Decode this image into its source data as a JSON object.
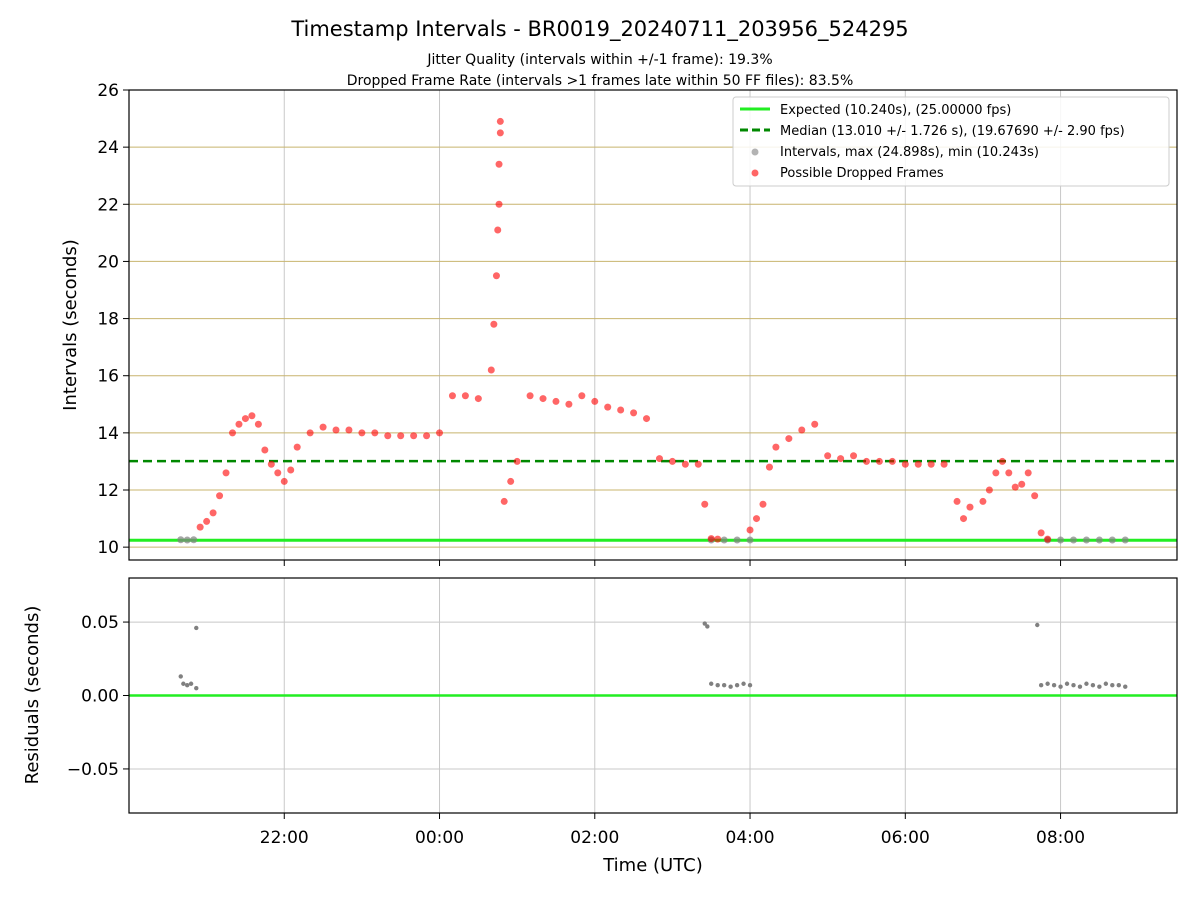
{
  "title": "Timestamp Intervals - BR0019_20240711_203956_524295",
  "subtitle_line1": "Jitter Quality (intervals within +/-1 frame): 19.3%",
  "subtitle_line2": "Dropped Frame Rate (intervals >1 frames late within 50 FF files): 83.5%",
  "colors": {
    "expected": "#22ee22",
    "median": "#008800",
    "intervals": "#808080",
    "dropped": "#ff0000",
    "hgrid_top": "#c8b46e",
    "grid": "#c8c8c8"
  },
  "chart_data": [
    {
      "type": "scatter",
      "panel": "intervals",
      "ylabel": "Intervals (seconds)",
      "ylim": [
        9.55,
        26
      ],
      "yticks": [
        "10",
        "12",
        "14",
        "16",
        "18",
        "20",
        "22",
        "24",
        "26"
      ],
      "xlim_hours": [
        20.0,
        33.5
      ],
      "grid": true,
      "legend_position": "top-right",
      "expected_value": 10.24,
      "median_value": 13.01,
      "legend": [
        {
          "label": "Expected (10.240s), (25.00000 fps)",
          "style": "solid-line"
        },
        {
          "label": "Median (13.010 +/- 1.726 s), (19.67690 +/- 2.90 fps)",
          "style": "dashed-line"
        },
        {
          "label": "Intervals, max (24.898s), min (10.243s)",
          "style": "gray-dot"
        },
        {
          "label": "Possible Dropped Frames",
          "style": "red-dot"
        }
      ],
      "interval_points": [
        [
          "20:40",
          10.26
        ],
        [
          "20:45",
          10.25
        ],
        [
          "20:50",
          10.26
        ],
        [
          "03:30",
          10.25
        ],
        [
          "03:40",
          10.25
        ],
        [
          "03:50",
          10.25
        ],
        [
          "04:00",
          10.25
        ],
        [
          "07:50",
          10.25
        ],
        [
          "08:00",
          10.25
        ],
        [
          "08:10",
          10.25
        ],
        [
          "08:20",
          10.25
        ],
        [
          "08:30",
          10.25
        ],
        [
          "08:40",
          10.25
        ],
        [
          "08:50",
          10.25
        ]
      ],
      "dropped_frames": [
        [
          "20:55",
          10.7
        ],
        [
          "21:00",
          10.9
        ],
        [
          "21:05",
          11.2
        ],
        [
          "21:10",
          11.8
        ],
        [
          "21:15",
          12.6
        ],
        [
          "21:20",
          14.0
        ],
        [
          "21:25",
          14.3
        ],
        [
          "21:30",
          14.5
        ],
        [
          "21:35",
          14.6
        ],
        [
          "21:40",
          14.3
        ],
        [
          "21:45",
          13.4
        ],
        [
          "21:50",
          12.9
        ],
        [
          "21:55",
          12.6
        ],
        [
          "22:00",
          12.3
        ],
        [
          "22:05",
          12.7
        ],
        [
          "22:10",
          13.5
        ],
        [
          "22:20",
          14.0
        ],
        [
          "22:30",
          14.2
        ],
        [
          "22:40",
          14.1
        ],
        [
          "22:50",
          14.1
        ],
        [
          "23:00",
          14.0
        ],
        [
          "23:10",
          14.0
        ],
        [
          "23:20",
          13.9
        ],
        [
          "23:30",
          13.9
        ],
        [
          "23:40",
          13.9
        ],
        [
          "23:50",
          13.9
        ],
        [
          "00:00",
          14.0
        ],
        [
          "00:10",
          15.3
        ],
        [
          "00:20",
          15.3
        ],
        [
          "00:30",
          15.2
        ],
        [
          "00:40",
          16.2
        ],
        [
          "00:42",
          17.8
        ],
        [
          "00:44",
          19.5
        ],
        [
          "00:45",
          21.1
        ],
        [
          "00:46",
          22.0
        ],
        [
          "00:46",
          23.4
        ],
        [
          "00:47",
          24.5
        ],
        [
          "00:47",
          24.9
        ],
        [
          "00:50",
          11.6
        ],
        [
          "00:55",
          12.3
        ],
        [
          "01:00",
          13.0
        ],
        [
          "01:10",
          15.3
        ],
        [
          "01:20",
          15.2
        ],
        [
          "01:30",
          15.1
        ],
        [
          "01:40",
          15.0
        ],
        [
          "01:50",
          15.3
        ],
        [
          "02:00",
          15.1
        ],
        [
          "02:10",
          14.9
        ],
        [
          "02:20",
          14.8
        ],
        [
          "02:30",
          14.7
        ],
        [
          "02:40",
          14.5
        ],
        [
          "02:50",
          13.1
        ],
        [
          "03:00",
          13.0
        ],
        [
          "03:10",
          12.9
        ],
        [
          "03:20",
          12.9
        ],
        [
          "03:25",
          11.5
        ],
        [
          "03:30",
          10.3
        ],
        [
          "03:35",
          10.28
        ],
        [
          "04:00",
          10.6
        ],
        [
          "04:05",
          11.0
        ],
        [
          "04:10",
          11.5
        ],
        [
          "04:15",
          12.8
        ],
        [
          "04:20",
          13.5
        ],
        [
          "04:30",
          13.8
        ],
        [
          "04:40",
          14.1
        ],
        [
          "04:50",
          14.3
        ],
        [
          "05:00",
          13.2
        ],
        [
          "05:10",
          13.1
        ],
        [
          "05:20",
          13.2
        ],
        [
          "05:30",
          13.0
        ],
        [
          "05:40",
          13.0
        ],
        [
          "05:50",
          13.0
        ],
        [
          "06:00",
          12.9
        ],
        [
          "06:10",
          12.9
        ],
        [
          "06:20",
          12.9
        ],
        [
          "06:30",
          12.9
        ],
        [
          "06:40",
          11.6
        ],
        [
          "06:45",
          11.0
        ],
        [
          "06:50",
          11.4
        ],
        [
          "07:00",
          11.6
        ],
        [
          "07:05",
          12.0
        ],
        [
          "07:10",
          12.6
        ],
        [
          "07:15",
          13.0
        ],
        [
          "07:20",
          12.6
        ],
        [
          "07:25",
          12.1
        ],
        [
          "07:30",
          12.2
        ],
        [
          "07:35",
          12.6
        ],
        [
          "07:40",
          11.8
        ],
        [
          "07:45",
          10.5
        ],
        [
          "07:50",
          10.28
        ]
      ]
    },
    {
      "type": "scatter",
      "panel": "residuals",
      "xlabel": "Time (UTC)",
      "ylabel": "Residuals (seconds)",
      "ylim": [
        -0.08,
        0.08
      ],
      "yticks": [
        "−0.05",
        "0.00",
        "0.05"
      ],
      "xticks": [
        "22:00",
        "00:00",
        "02:00",
        "04:00",
        "06:00",
        "08:00"
      ],
      "grid": true,
      "points": [
        [
          "20:40",
          0.013
        ],
        [
          "20:42",
          0.008
        ],
        [
          "20:45",
          0.007
        ],
        [
          "20:48",
          0.008
        ],
        [
          "20:52",
          0.046
        ],
        [
          "20:52",
          0.005
        ],
        [
          "03:25",
          0.049
        ],
        [
          "03:27",
          0.047
        ],
        [
          "03:30",
          0.008
        ],
        [
          "03:35",
          0.007
        ],
        [
          "03:40",
          0.007
        ],
        [
          "03:45",
          0.006
        ],
        [
          "03:50",
          0.007
        ],
        [
          "03:55",
          0.008
        ],
        [
          "04:00",
          0.007
        ],
        [
          "07:42",
          0.048
        ],
        [
          "07:45",
          0.007
        ],
        [
          "07:50",
          0.008
        ],
        [
          "07:55",
          0.007
        ],
        [
          "08:00",
          0.006
        ],
        [
          "08:05",
          0.008
        ],
        [
          "08:10",
          0.007
        ],
        [
          "08:15",
          0.006
        ],
        [
          "08:20",
          0.008
        ],
        [
          "08:25",
          0.007
        ],
        [
          "08:30",
          0.006
        ],
        [
          "08:35",
          0.008
        ],
        [
          "08:40",
          0.007
        ],
        [
          "08:45",
          0.007
        ],
        [
          "08:50",
          0.006
        ]
      ]
    }
  ]
}
